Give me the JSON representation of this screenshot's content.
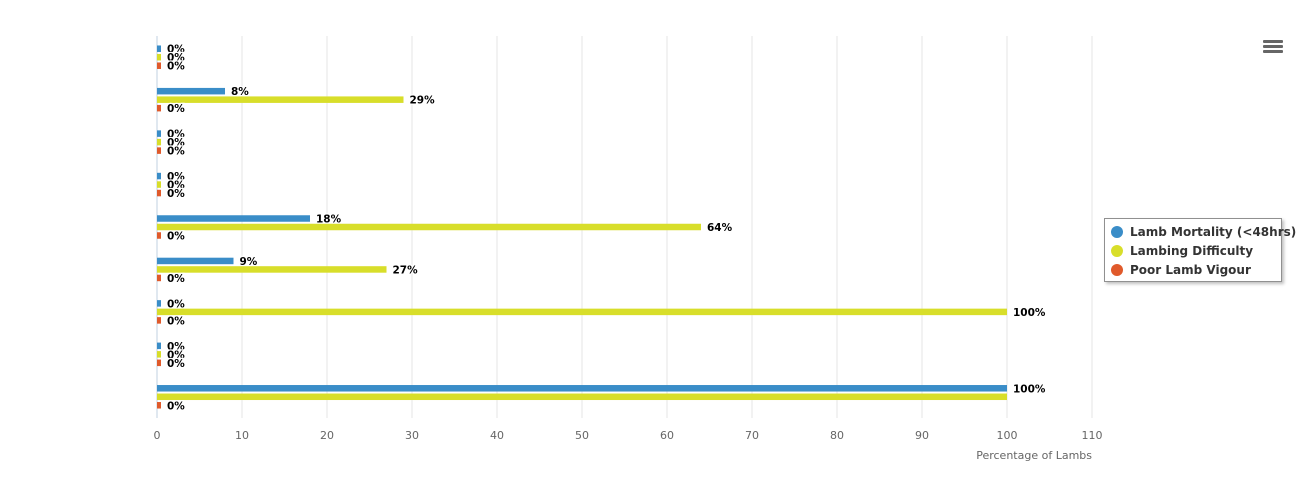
{
  "chart_data": {
    "type": "bar",
    "orientation": "horizontal",
    "categories": [
      "",
      "",
      "",
      "",
      "",
      "",
      "",
      "",
      ""
    ],
    "series": [
      {
        "name": "Lamb Mortality (<48hrs)",
        "color": "#3a8dc8",
        "values": [
          0,
          8,
          0,
          0,
          18,
          9,
          0,
          0,
          100
        ]
      },
      {
        "name": "Lambing Difficulty",
        "color": "#d8de2a",
        "values": [
          0,
          29,
          0,
          0,
          64,
          27,
          100,
          0,
          100
        ]
      },
      {
        "name": "Poor Lamb Vigour",
        "color": "#e05a2b",
        "values": [
          0,
          0,
          0,
          0,
          0,
          0,
          0,
          0,
          0
        ]
      }
    ],
    "data_labels": [
      [
        "0%",
        "0%",
        "0%"
      ],
      [
        "8%",
        "29%",
        "0%"
      ],
      [
        "0%",
        "0%",
        "0%"
      ],
      [
        "0%",
        "0%",
        "0%"
      ],
      [
        "18%",
        "64%",
        "0%"
      ],
      [
        "9%",
        "27%",
        "0%"
      ],
      [
        "0%",
        "100%",
        "0%"
      ],
      [
        "0%",
        "0%",
        "0%"
      ],
      [
        "100%",
        "",
        "0%"
      ]
    ],
    "x_ticks": [
      0,
      10,
      20,
      30,
      40,
      50,
      60,
      70,
      80,
      90,
      100,
      110
    ],
    "xlim": [
      0,
      110
    ],
    "xlabel": "Percentage of Lambs",
    "ylabel": "",
    "title": "",
    "grid": true,
    "legend_position": "right"
  },
  "menu": {
    "icon": "hamburger-menu-icon"
  }
}
